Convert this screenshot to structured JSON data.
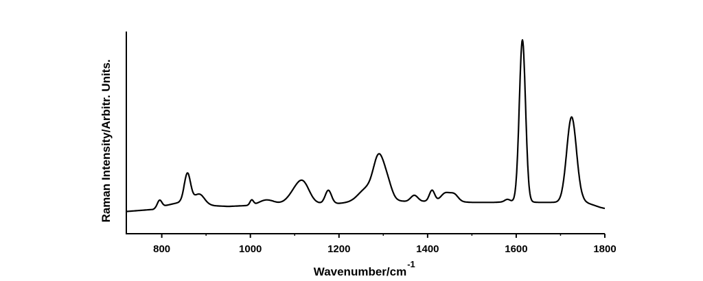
{
  "chart_data": {
    "type": "line",
    "xlabel": "Wavenumber/cm",
    "xlabel_superscript": "-1",
    "ylabel": "Raman Intensity/Arbitr. Units.",
    "xlim": [
      720,
      1800
    ],
    "ylim": [
      0,
      1
    ],
    "x_ticks": [
      800,
      1000,
      1200,
      1400,
      1600,
      1800
    ],
    "y_ticks_shown": false,
    "grid": false,
    "series": [
      {
        "color": "#000000",
        "baseline": [
          [
            720,
            0.11
          ],
          [
            780,
            0.12
          ],
          [
            800,
            0.135
          ],
          [
            850,
            0.16
          ],
          [
            900,
            0.14
          ],
          [
            950,
            0.135
          ],
          [
            1000,
            0.14
          ],
          [
            1050,
            0.15
          ],
          [
            1100,
            0.15
          ],
          [
            1150,
            0.15
          ],
          [
            1200,
            0.15
          ],
          [
            1250,
            0.16
          ],
          [
            1300,
            0.17
          ],
          [
            1350,
            0.16
          ],
          [
            1400,
            0.16
          ],
          [
            1450,
            0.16
          ],
          [
            1500,
            0.155
          ],
          [
            1550,
            0.155
          ],
          [
            1600,
            0.16
          ],
          [
            1650,
            0.155
          ],
          [
            1700,
            0.155
          ],
          [
            1750,
            0.16
          ],
          [
            1790,
            0.13
          ],
          [
            1800,
            0.125
          ]
        ],
        "peaks": [
          {
            "center": 795,
            "height": 0.035,
            "width": 5
          },
          {
            "center": 858,
            "height": 0.14,
            "width": 7
          },
          {
            "center": 885,
            "height": 0.05,
            "width": 12
          },
          {
            "center": 1003,
            "height": 0.025,
            "width": 4
          },
          {
            "center": 1035,
            "height": 0.02,
            "width": 15
          },
          {
            "center": 1100,
            "height": 0.05,
            "width": 15
          },
          {
            "center": 1120,
            "height": 0.09,
            "width": 14
          },
          {
            "center": 1176,
            "height": 0.065,
            "width": 7
          },
          {
            "center": 1262,
            "height": 0.06,
            "width": 18
          },
          {
            "center": 1290,
            "height": 0.2,
            "width": 12
          },
          {
            "center": 1310,
            "height": 0.07,
            "width": 10
          },
          {
            "center": 1370,
            "height": 0.03,
            "width": 8
          },
          {
            "center": 1410,
            "height": 0.055,
            "width": 6
          },
          {
            "center": 1440,
            "height": 0.04,
            "width": 10
          },
          {
            "center": 1460,
            "height": 0.035,
            "width": 9
          },
          {
            "center": 1580,
            "height": 0.012,
            "width": 6
          },
          {
            "center": 1614,
            "height": 0.8,
            "width": 7
          },
          {
            "center": 1725,
            "height": 0.42,
            "width": 11
          }
        ]
      }
    ]
  }
}
